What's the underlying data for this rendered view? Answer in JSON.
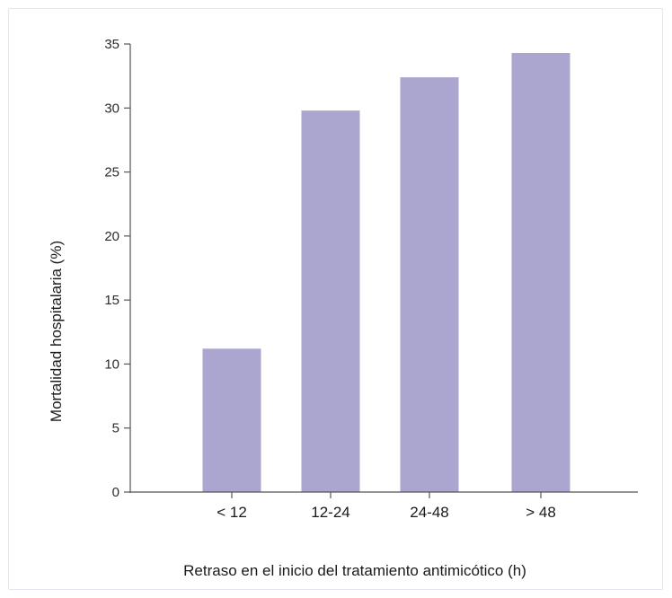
{
  "chart_data": {
    "type": "bar",
    "categories": [
      "< 12",
      "12-24",
      "24-48",
      "> 48"
    ],
    "values": [
      11.2,
      29.8,
      32.4,
      34.3
    ],
    "title": "",
    "xlabel": "Retraso en el inicio del tratamiento antimicótico (h)",
    "ylabel": "Mortalidad hospitalaria (%)",
    "ylim": [
      0,
      35
    ],
    "yticks": [
      0,
      5,
      10,
      15,
      20,
      25,
      30,
      35
    ],
    "grid": false,
    "legend": "none",
    "bar_color": "#aba6d0",
    "axis_color": "#555555"
  }
}
